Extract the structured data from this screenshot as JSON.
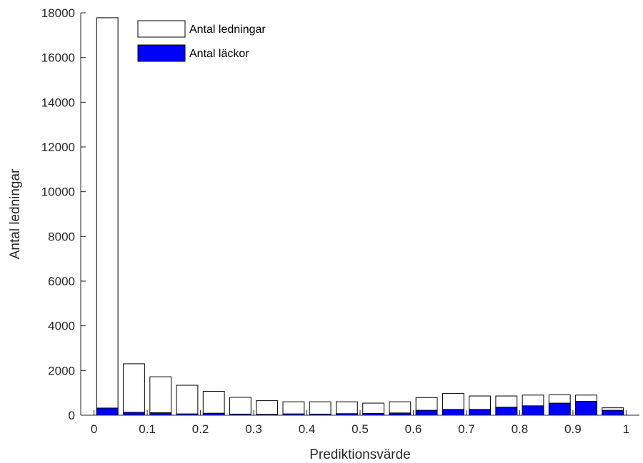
{
  "chart_data": {
    "type": "bar",
    "xlabel": "Prediktionsvärde",
    "ylabel": "Antal ledningar",
    "xlim": [
      -0.025,
      1.025
    ],
    "ylim": [
      0,
      18000
    ],
    "xticks": [
      0,
      0.1,
      0.2,
      0.3,
      0.4,
      0.5,
      0.6,
      0.7,
      0.8,
      0.9,
      1
    ],
    "xtick_labels": [
      "0",
      "0.1",
      "0.2",
      "0.3",
      "0.4",
      "0.5",
      "0.6",
      "0.7",
      "0.8",
      "0.9",
      "1"
    ],
    "yticks": [
      0,
      2000,
      4000,
      6000,
      8000,
      10000,
      12000,
      14000,
      16000,
      18000
    ],
    "ytick_labels": [
      "0",
      "2000",
      "4000",
      "6000",
      "8000",
      "10000",
      "12000",
      "14000",
      "16000",
      "18000"
    ],
    "bin_centers": [
      0.025,
      0.075,
      0.125,
      0.175,
      0.225,
      0.275,
      0.325,
      0.375,
      0.425,
      0.475,
      0.525,
      0.575,
      0.625,
      0.675,
      0.725,
      0.775,
      0.825,
      0.875,
      0.925,
      0.975
    ],
    "legend_position": "top-left",
    "series": [
      {
        "name": "Antal ledningar",
        "color": "#ffffff",
        "edge": "#000000",
        "values": [
          17780,
          2300,
          1720,
          1340,
          1070,
          800,
          650,
          600,
          600,
          600,
          540,
          600,
          790,
          970,
          860,
          860,
          900,
          910,
          900,
          330
        ]
      },
      {
        "name": "Antal läckor",
        "color": "#0000ff",
        "edge": "#000000",
        "values": [
          320,
          130,
          110,
          60,
          90,
          50,
          40,
          60,
          50,
          70,
          80,
          100,
          220,
          260,
          260,
          360,
          420,
          540,
          620,
          220
        ]
      }
    ]
  }
}
